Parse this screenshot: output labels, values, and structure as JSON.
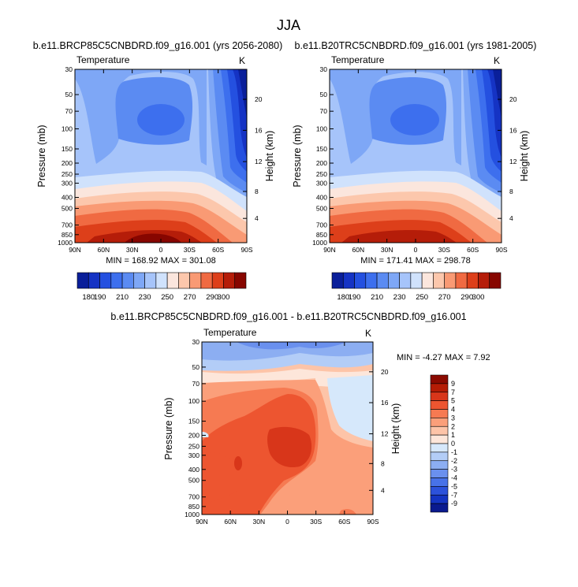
{
  "figure_title": "JJA",
  "chart_data": [
    {
      "id": "future",
      "type": "contour",
      "title": "b.e11.BRCP85C5CNBDRD.f09_g16.001 (yrs 2056-2080)",
      "field_label": "Temperature",
      "units": "K",
      "ylabel_left": "Pressure (mb)",
      "ylabel_right": "Height (km)",
      "x_ticks": [
        "90N",
        "60N",
        "30N",
        "0",
        "30S",
        "60S",
        "90S"
      ],
      "x_values": [
        90,
        60,
        30,
        0,
        -30,
        -60,
        -90
      ],
      "pressure_ticks": [
        30,
        50,
        70,
        100,
        150,
        200,
        250,
        300,
        400,
        500,
        700,
        850,
        1000
      ],
      "height_ticks": [
        20,
        16,
        12,
        8,
        4
      ],
      "height_km_at_pressure": {
        "20": 55,
        "16": 103,
        "12": 194,
        "8": 355,
        "4": 612
      },
      "stats": "MIN = 168.92  MAX = 301.08",
      "min": 168.92,
      "max": 301.08,
      "colorbar_levels": [
        180,
        190,
        200,
        210,
        220,
        230,
        240,
        250,
        260,
        270,
        280,
        290,
        300
      ],
      "colorbar_labels": [
        "180",
        "190",
        "210",
        "230",
        "250",
        "270",
        "290",
        "300"
      ]
    },
    {
      "id": "present",
      "type": "contour",
      "title": "b.e11.B20TRC5CNBDRD.f09_g16.001 (yrs 1981-2005)",
      "field_label": "Temperature",
      "units": "K",
      "ylabel_left": "Pressure (mb)",
      "ylabel_right": "Height (km)",
      "x_ticks": [
        "90N",
        "60N",
        "30N",
        "0",
        "30S",
        "60S",
        "90S"
      ],
      "x_values": [
        90,
        60,
        30,
        0,
        -30,
        -60,
        -90
      ],
      "pressure_ticks": [
        30,
        50,
        70,
        100,
        150,
        200,
        250,
        300,
        400,
        500,
        700,
        850,
        1000
      ],
      "height_ticks": [
        20,
        16,
        12,
        8,
        4
      ],
      "height_km_at_pressure": {
        "20": 55,
        "16": 103,
        "12": 194,
        "8": 355,
        "4": 612
      },
      "stats": "MIN = 171.41  MAX = 298.78",
      "min": 171.41,
      "max": 298.78,
      "colorbar_levels": [
        180,
        190,
        200,
        210,
        220,
        230,
        240,
        250,
        260,
        270,
        280,
        290,
        300
      ],
      "colorbar_labels": [
        "180",
        "190",
        "210",
        "230",
        "250",
        "270",
        "290",
        "300"
      ]
    },
    {
      "id": "difference",
      "type": "contour",
      "title": "b.e11.BRCP85C5CNBDRD.f09_g16.001 - b.e11.B20TRC5CNBDRD.f09_g16.001",
      "field_label": "Temperature",
      "units": "K",
      "ylabel_left": "Pressure (mb)",
      "ylabel_right": "Height (km)",
      "x_ticks": [
        "90N",
        "60N",
        "30N",
        "0",
        "30S",
        "60S",
        "90S"
      ],
      "x_values": [
        90,
        60,
        30,
        0,
        -30,
        -60,
        -90
      ],
      "pressure_ticks": [
        30,
        50,
        70,
        100,
        150,
        200,
        250,
        300,
        400,
        500,
        700,
        850,
        1000
      ],
      "height_ticks": [
        20,
        16,
        12,
        8,
        4
      ],
      "height_km_at_pressure": {
        "20": 55,
        "16": 103,
        "12": 194,
        "8": 355,
        "4": 612
      },
      "stats": "MIN =  -4.27  MAX =   7.92",
      "min": -4.27,
      "max": 7.92,
      "colorbar_levels": [
        9,
        7,
        5,
        4,
        3,
        2,
        1,
        0,
        -1,
        -2,
        -3,
        -4,
        -5,
        -7,
        -9
      ],
      "colorbar_labels": [
        "9",
        "7",
        "5",
        "4",
        "3",
        "2",
        "1",
        "0",
        "-1",
        "-2",
        "-3",
        "-4",
        "-5",
        "-7",
        "-9"
      ]
    }
  ],
  "colors": {
    "temperature_scale": [
      "#0a1f9a",
      "#1533c4",
      "#2450e0",
      "#3d6fee",
      "#5b8bf2",
      "#7ea7f6",
      "#a6c4fa",
      "#d0e2fc",
      "#fbe6dd",
      "#fcc7ac",
      "#f99a74",
      "#f06a42",
      "#dd3f1a",
      "#b51d09",
      "#870600"
    ],
    "difference_scale": [
      "#8b0a00",
      "#b51c05",
      "#d8361a",
      "#ed5530",
      "#f67a52",
      "#fb9f7a",
      "#fdc4a8",
      "#fde6da",
      "#d6e8fb",
      "#b3cdf7",
      "#8caef2",
      "#6a90ee",
      "#4872e8",
      "#2c52db",
      "#1434c2",
      "#0a1a8f"
    ]
  }
}
